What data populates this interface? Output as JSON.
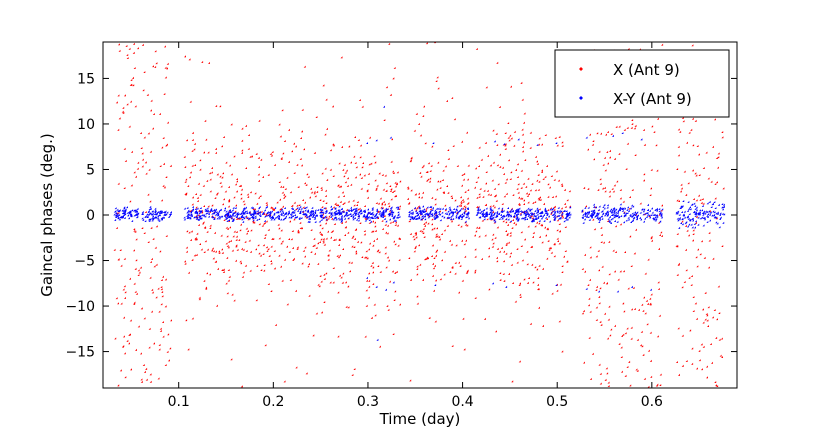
{
  "chart_data": {
    "type": "scatter",
    "title": "",
    "xlabel": "Time (day)",
    "ylabel": "Gaincal phases (deg.)",
    "xlim": [
      0.02,
      0.69
    ],
    "ylim": [
      -19,
      19
    ],
    "x_ticks": [
      0.1,
      0.2,
      0.3,
      0.4,
      0.5,
      0.6
    ],
    "x_tick_labels": [
      "0.1",
      "0.2",
      "0.3",
      "0.4",
      "0.5",
      "0.6"
    ],
    "y_ticks": [
      -15,
      -10,
      -5,
      0,
      5,
      10,
      15
    ],
    "y_tick_labels": [
      "−15",
      "−10",
      "−5",
      "0",
      "5",
      "10",
      "15"
    ],
    "grid": false,
    "legend_position": "top-right",
    "series": [
      {
        "name": "X (Ant 9)",
        "color": "#ff0000",
        "marker": "diamond",
        "segments": [
          {
            "x_start": 0.033,
            "x_end": 0.093,
            "center": 0,
            "spread": 19
          },
          {
            "x_start": 0.107,
            "x_end": 0.335,
            "center": 0,
            "spread": 9
          },
          {
            "x_start": 0.343,
            "x_end": 0.408,
            "center": 0,
            "spread": 9
          },
          {
            "x_start": 0.414,
            "x_end": 0.515,
            "center": 0,
            "spread": 10
          },
          {
            "x_start": 0.527,
            "x_end": 0.612,
            "center": 0,
            "spread": 19
          },
          {
            "x_start": 0.627,
            "x_end": 0.678,
            "center": 0,
            "spread": 19
          }
        ]
      },
      {
        "name": "X-Y (Ant 9)",
        "color": "#0000ff",
        "marker": "diamond",
        "segments": [
          {
            "x_start": 0.033,
            "x_end": 0.093,
            "center": 0,
            "spread": 0.9
          },
          {
            "x_start": 0.107,
            "x_end": 0.335,
            "center": 0,
            "spread": 0.9
          },
          {
            "x_start": 0.343,
            "x_end": 0.408,
            "center": 0,
            "spread": 0.9
          },
          {
            "x_start": 0.414,
            "x_end": 0.515,
            "center": 0,
            "spread": 0.9
          },
          {
            "x_start": 0.527,
            "x_end": 0.612,
            "center": 0,
            "spread": 1.1
          },
          {
            "x_start": 0.627,
            "x_end": 0.678,
            "center": 0,
            "spread": 1.7
          }
        ],
        "outliers": [
          [
            0.3,
            7.8
          ],
          [
            0.31,
            8.1
          ],
          [
            0.325,
            8.4
          ],
          [
            0.318,
            11.8
          ],
          [
            0.3,
            -7.0
          ],
          [
            0.31,
            -8.0
          ],
          [
            0.32,
            -8.3
          ],
          [
            0.328,
            -7.5
          ],
          [
            0.311,
            -13.8
          ],
          [
            0.37,
            7.8
          ],
          [
            0.372,
            -7.8
          ],
          [
            0.435,
            8.0
          ],
          [
            0.445,
            7.7
          ],
          [
            0.46,
            8.2
          ],
          [
            0.48,
            7.6
          ],
          [
            0.5,
            7.8
          ],
          [
            0.433,
            -7.6
          ],
          [
            0.447,
            -8.0
          ],
          [
            0.5,
            -7.8
          ],
          [
            0.532,
            8.4
          ],
          [
            0.56,
            8.6
          ],
          [
            0.57,
            8.9
          ],
          [
            0.59,
            8.2
          ],
          [
            0.532,
            -8.2
          ],
          [
            0.545,
            -8.5
          ],
          [
            0.565,
            -8.5
          ],
          [
            0.58,
            -8.0
          ],
          [
            0.6,
            -8.3
          ]
        ]
      }
    ]
  }
}
